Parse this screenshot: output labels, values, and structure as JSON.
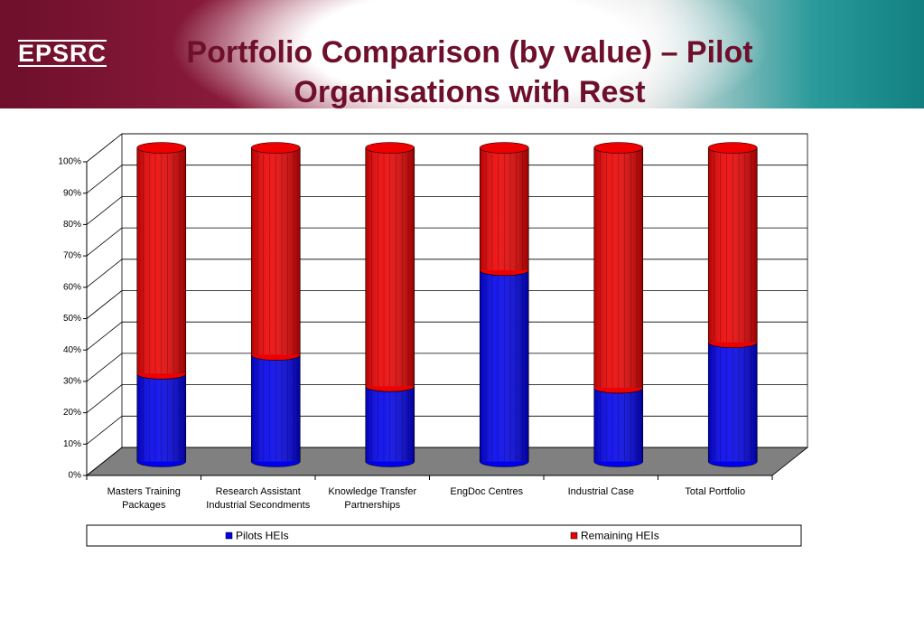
{
  "header": {
    "logo": "EPSRC"
  },
  "chart_data": {
    "type": "stacked-cylinder",
    "title": "Portfolio Comparison (by value) – Pilot Organisations with Rest",
    "categories": [
      "Masters Training Packages",
      "Research Assistant Industrial Secondments",
      "Knowledge Transfer Partnerships",
      "EngDoc Centres",
      "Industrial Case",
      "Total Portfolio"
    ],
    "series": [
      {
        "name": "Pilots HEIs",
        "color": "#0000ee",
        "values": [
          28,
          34,
          24,
          61,
          23.5,
          38
        ]
      },
      {
        "name": "Remaining HEIs",
        "color": "#ee0000",
        "values": [
          72,
          66,
          76,
          39,
          76.5,
          62
        ]
      }
    ],
    "ylim": [
      0,
      100
    ],
    "yticks": [
      {
        "value": 0,
        "label": "0%"
      },
      {
        "value": 10,
        "label": "10%"
      },
      {
        "value": 20,
        "label": "20%"
      },
      {
        "value": 30,
        "label": "30%"
      },
      {
        "value": 40,
        "label": "40%"
      },
      {
        "value": 50,
        "label": "50%"
      },
      {
        "value": 60,
        "label": "60%"
      },
      {
        "value": 70,
        "label": "70%"
      },
      {
        "value": 80,
        "label": "80%"
      },
      {
        "value": 90,
        "label": "90%"
      },
      {
        "value": 100,
        "label": "100%"
      }
    ],
    "grid": true,
    "legend": "bottom"
  }
}
